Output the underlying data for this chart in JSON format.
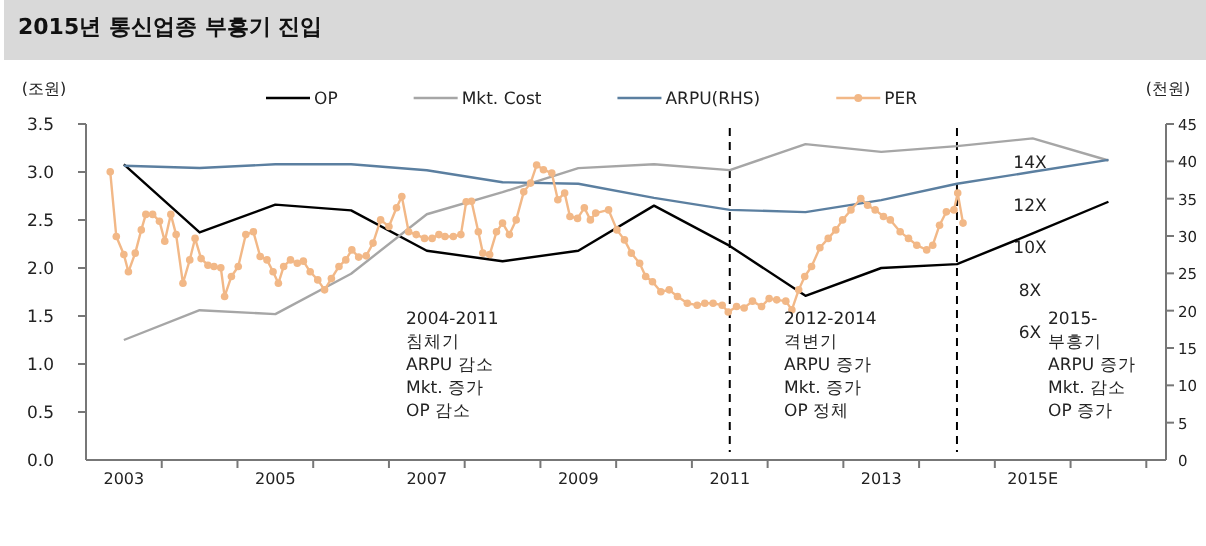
{
  "chart_data": {
    "type": "line",
    "title": "2015년 통신업종 부흥기 진입",
    "ylabel": "(조원)",
    "y2label": "(천원)",
    "xlim": [
      2002.5,
      2016.76
    ],
    "xticks": [
      {
        "value": 2003,
        "label": "2003"
      },
      {
        "value": 2003.5,
        "label": null
      },
      {
        "value": 2004.5,
        "label": null
      },
      {
        "value": 2005,
        "label": "2005"
      },
      {
        "value": 2005.5,
        "label": null
      },
      {
        "value": 2006.5,
        "label": null
      },
      {
        "value": 2007,
        "label": "2007"
      },
      {
        "value": 2007.5,
        "label": null
      },
      {
        "value": 2008.5,
        "label": null
      },
      {
        "value": 2009,
        "label": "2009"
      },
      {
        "value": 2009.5,
        "label": null
      },
      {
        "value": 2010.5,
        "label": null
      },
      {
        "value": 2011,
        "label": "2011"
      },
      {
        "value": 2011.5,
        "label": null
      },
      {
        "value": 2012.5,
        "label": null
      },
      {
        "value": 2013,
        "label": "2013"
      },
      {
        "value": 2013.5,
        "label": null
      },
      {
        "value": 2014.5,
        "label": null
      },
      {
        "value": 2015,
        "label": "2015E"
      },
      {
        "value": 2015.5,
        "label": null
      },
      {
        "value": 2016.5,
        "label": null
      }
    ],
    "ylim": [
      0,
      3.5
    ],
    "yticks": [
      {
        "value": 0,
        "label": "0.0"
      },
      {
        "value": 0.5,
        "label": "0.5"
      },
      {
        "value": 1,
        "label": "1.0"
      },
      {
        "value": 1.5,
        "label": "1.5"
      },
      {
        "value": 2,
        "label": "2.0"
      },
      {
        "value": 2.5,
        "label": "2.5"
      },
      {
        "value": 3,
        "label": "3.0"
      },
      {
        "value": 3.5,
        "label": "3.5"
      }
    ],
    "y2lim": [
      0,
      45
    ],
    "y2ticks": [
      0,
      5,
      10,
      15,
      20,
      25,
      30,
      35,
      40,
      45
    ],
    "y3lim": [
      0,
      15.8
    ],
    "y3ticks": [
      {
        "value": 6,
        "label": "6X"
      },
      {
        "value": 8,
        "label": "8X"
      },
      {
        "value": 10,
        "label": "10X"
      },
      {
        "value": 12,
        "label": "12X"
      },
      {
        "value": 14,
        "label": "14X"
      }
    ],
    "legend": "top",
    "grid": false,
    "line_style": "solid",
    "series": [
      {
        "name": "OP",
        "color": "#000000",
        "marker": "none",
        "x": [
          2003,
          2004,
          2005,
          2006,
          2007,
          2008,
          2009,
          2010,
          2011,
          2012,
          2013,
          2014,
          2015,
          2016
        ],
        "values": [
          3.08,
          2.37,
          2.66,
          2.6,
          2.18,
          2.07,
          2.18,
          2.65,
          2.23,
          1.71,
          2.0,
          2.04,
          2.36,
          2.69
        ]
      },
      {
        "name": "Mkt. Cost",
        "color": "#a6a6a6",
        "marker": "none",
        "x": [
          2003,
          2004,
          2005,
          2006,
          2007,
          2008,
          2009,
          2010,
          2011,
          2012,
          2013,
          2014,
          2015,
          2016
        ],
        "values": [
          1.25,
          1.56,
          1.52,
          1.94,
          2.56,
          2.79,
          3.04,
          3.08,
          3.02,
          3.29,
          3.21,
          3.27,
          3.35,
          3.12
        ]
      },
      {
        "name": "ARPU(RHS)",
        "color": "#5b7fa0",
        "marker": "none",
        "axis": "y2",
        "x": [
          2003,
          2004,
          2005,
          2006,
          2007,
          2008,
          2009,
          2010,
          2011,
          2012,
          2013,
          2014,
          2015,
          2016
        ],
        "values": [
          39.4,
          39.1,
          39.6,
          39.6,
          38.8,
          37.2,
          37.0,
          35.1,
          33.5,
          33.2,
          34.8,
          37.0,
          38.6,
          40.2
        ]
      },
      {
        "name": "PER",
        "color": "#f2b887",
        "marker": "circle",
        "axis": "y3",
        "x": [
          2002.82,
          2002.9,
          2003.0,
          2003.06,
          2003.15,
          2003.23,
          2003.29,
          2003.38,
          2003.47,
          2003.54,
          2003.62,
          2003.69,
          2003.78,
          2003.87,
          2003.94,
          2004.02,
          2004.11,
          2004.19,
          2004.28,
          2004.33,
          2004.42,
          2004.51,
          2004.61,
          2004.71,
          2004.8,
          2004.89,
          2004.97,
          2005.04,
          2005.11,
          2005.2,
          2005.29,
          2005.37,
          2005.46,
          2005.56,
          2005.65,
          2005.74,
          2005.84,
          2005.93,
          2006.01,
          2006.1,
          2006.2,
          2006.29,
          2006.39,
          2006.5,
          2006.6,
          2006.67,
          2006.76,
          2006.86,
          2006.97,
          2007.07,
          2007.16,
          2007.24,
          2007.35,
          2007.45,
          2007.52,
          2007.59,
          2007.68,
          2007.74,
          2007.83,
          2007.92,
          2008.0,
          2008.09,
          2008.18,
          2008.28,
          2008.37,
          2008.45,
          2008.54,
          2008.65,
          2008.73,
          2008.82,
          2008.89,
          2008.99,
          2009.08,
          2009.16,
          2009.23,
          2009.4,
          2009.51,
          2009.61,
          2009.7,
          2009.81,
          2009.89,
          2009.98,
          2010.09,
          2010.2,
          2010.31,
          2010.44,
          2010.57,
          2010.67,
          2010.78,
          2010.9,
          2010.98,
          2011.09,
          2011.19,
          2011.3,
          2011.42,
          2011.52,
          2011.62,
          2011.74,
          2011.82,
          2011.91,
          2011.99,
          2012.08,
          2012.19,
          2012.3,
          2012.4,
          2012.49,
          2012.6,
          2012.73,
          2012.82,
          2012.92,
          2013.03,
          2013.12,
          2013.25,
          2013.36,
          2013.47,
          2013.6,
          2013.68,
          2013.77,
          2013.86,
          2013.96,
          2014.01,
          2014.08
        ],
        "values": [
          13.55,
          10.51,
          9.66,
          8.85,
          9.73,
          10.82,
          11.55,
          11.55,
          11.23,
          10.29,
          11.55,
          10.6,
          8.31,
          9.41,
          10.42,
          9.47,
          9.16,
          9.1,
          9.04,
          7.69,
          8.63,
          9.1,
          10.6,
          10.73,
          9.57,
          9.41,
          8.85,
          8.31,
          9.1,
          9.41,
          9.25,
          9.35,
          8.85,
          8.47,
          8.0,
          8.53,
          9.1,
          9.41,
          9.88,
          9.54,
          9.6,
          10.2,
          11.29,
          10.98,
          11.86,
          12.39,
          10.73,
          10.6,
          10.42,
          10.42,
          10.6,
          10.51,
          10.51,
          10.6,
          12.14,
          12.17,
          10.73,
          9.73,
          9.66,
          10.73,
          11.14,
          10.6,
          11.29,
          12.61,
          13.02,
          13.87,
          13.65,
          13.49,
          12.24,
          12.55,
          11.45,
          11.36,
          11.86,
          11.29,
          11.61,
          11.76,
          10.82,
          10.35,
          9.73,
          9.25,
          8.63,
          8.38,
          7.91,
          8.0,
          7.69,
          7.37,
          7.28,
          7.37,
          7.37,
          7.28,
          6.96,
          7.22,
          7.15,
          7.47,
          7.22,
          7.59,
          7.53,
          7.47,
          7.06,
          8.0,
          8.63,
          9.1,
          9.98,
          10.42,
          10.82,
          11.29,
          11.76,
          12.3,
          11.98,
          11.76,
          11.45,
          11.29,
          10.73,
          10.42,
          10.1,
          9.88,
          10.1,
          11.04,
          11.67,
          11.76,
          12.55,
          11.14
        ]
      }
    ],
    "ref_lines": [
      {
        "axis": "x",
        "value": 2011,
        "line_style": "dashed",
        "color": "#000000"
      },
      {
        "axis": "x",
        "value": 2014,
        "line_style": "dashed",
        "color": "#000000"
      }
    ],
    "annotations": [
      "2004-2011\n침체기\nARPU 감소\nMkt. 증가\nOP 감소",
      "2012-2014\n격변기\nARPU 증가\nMkt. 증가\nOP 정체",
      "2015-\n부흥기\nARPU 증가\nMkt. 감소\nOP 증가"
    ]
  }
}
